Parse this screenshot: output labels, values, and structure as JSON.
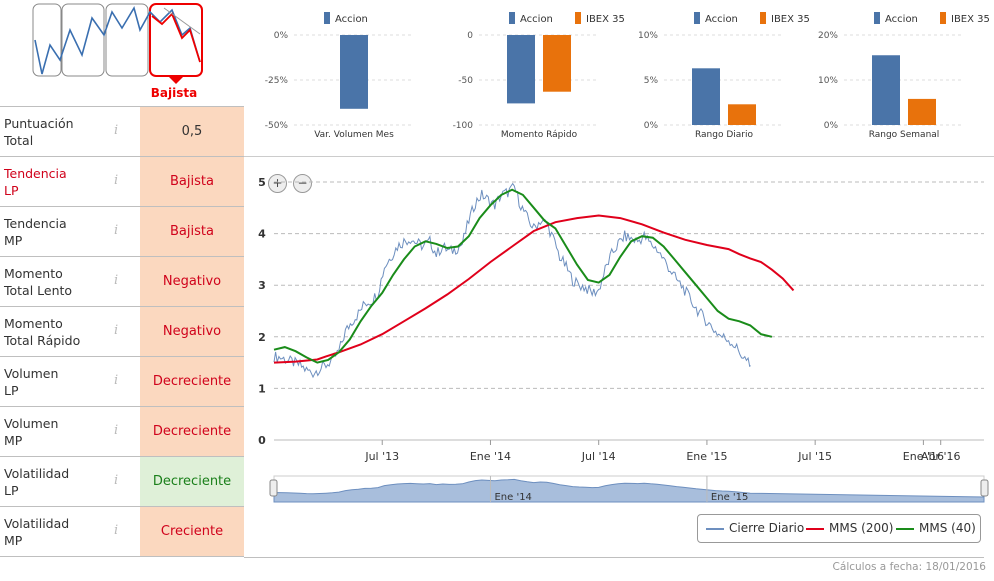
{
  "trend_selector": {
    "selected_label": "Bajista",
    "accent": "#e00000"
  },
  "indicators": [
    {
      "label_1": "Puntuación",
      "label_2": "Total",
      "value": "0,5",
      "label_color": "normal",
      "style": "neutral"
    },
    {
      "label_1": "Tendencia",
      "label_2": "LP",
      "value": "Bajista",
      "label_color": "red",
      "style": "orange"
    },
    {
      "label_1": "Tendencia",
      "label_2": "MP",
      "value": "Bajista",
      "label_color": "normal",
      "style": "orange"
    },
    {
      "label_1": "Momento",
      "label_2": "Total Lento",
      "value": "Negativo",
      "label_color": "normal",
      "style": "orange"
    },
    {
      "label_1": "Momento",
      "label_2": "Total Rápido",
      "value": "Negativo",
      "label_color": "normal",
      "style": "orange"
    },
    {
      "label_1": "Volumen",
      "label_2": "LP",
      "value": "Decreciente",
      "label_color": "normal",
      "style": "orange"
    },
    {
      "label_1": "Volumen",
      "label_2": "MP",
      "value": "Decreciente",
      "label_color": "normal",
      "style": "orange"
    },
    {
      "label_1": "Volatilidad",
      "label_2": "LP",
      "value": "Decreciente",
      "label_color": "normal",
      "style": "green"
    },
    {
      "label_1": "Volatilidad",
      "label_2": "MP",
      "value": "Creciente",
      "label_color": "normal",
      "style": "orange"
    }
  ],
  "info_glyph": "i",
  "colors": {
    "accion": "#4a74a8",
    "ibex": "#e8720c",
    "cierre": "#6d8fbf",
    "mms200": "#e0001b",
    "mms40": "#1a8c1a"
  },
  "chart_data": [
    {
      "type": "bar",
      "legend": [
        "Accion"
      ],
      "categories": [
        "Var. Volumen Mes"
      ],
      "series": [
        {
          "name": "Accion",
          "values": [
            -41
          ]
        }
      ],
      "ylim": [
        -50,
        0
      ],
      "yticks": [
        "0%",
        "-25%",
        "-50%"
      ]
    },
    {
      "type": "bar",
      "legend": [
        "Accion",
        "IBEX 35"
      ],
      "categories": [
        "Momento Rápido"
      ],
      "series": [
        {
          "name": "Accion",
          "values": [
            -76
          ]
        },
        {
          "name": "IBEX 35",
          "values": [
            -63
          ]
        }
      ],
      "ylim": [
        -100,
        0
      ],
      "yticks": [
        "0",
        "-50",
        "-100"
      ]
    },
    {
      "type": "bar",
      "legend": [
        "Accion",
        "IBEX 35"
      ],
      "categories": [
        "Rango Diario"
      ],
      "series": [
        {
          "name": "Accion",
          "values": [
            6.3
          ]
        },
        {
          "name": "IBEX 35",
          "values": [
            2.3
          ]
        }
      ],
      "ylim": [
        0,
        10
      ],
      "yticks": [
        "10%",
        "5%",
        "0%"
      ]
    },
    {
      "type": "bar",
      "legend": [
        "Accion",
        "IBEX 35"
      ],
      "categories": [
        "Rango Semanal"
      ],
      "series": [
        {
          "name": "Accion",
          "values": [
            15.5
          ]
        },
        {
          "name": "IBEX 35",
          "values": [
            5.8
          ]
        }
      ],
      "ylim": [
        0,
        20
      ],
      "yticks": [
        "20%",
        "10%",
        "0%"
      ]
    },
    {
      "type": "line",
      "x_ticks": [
        "Jul '13",
        "Ene '14",
        "Jul '14",
        "Ene '15",
        "Jul '15",
        "Ene '16",
        "Abr '16"
      ],
      "x_tick_pos": [
        2013.5,
        2014.0,
        2014.5,
        2015.0,
        2015.5,
        2016.0,
        2016.08
      ],
      "xlim": [
        2013.0,
        2016.28
      ],
      "y_ticks": [
        "0",
        "1",
        "2",
        "3",
        "4",
        "5"
      ],
      "ylim": [
        0,
        5
      ],
      "navigator_ticks": [
        "Ene '14",
        "Ene '15"
      ],
      "series": [
        {
          "name": "Cierre Diario",
          "points": [
            [
              2013.0,
              1.62
            ],
            [
              2013.03,
              1.6
            ],
            [
              2013.06,
              1.55
            ],
            [
              2013.09,
              1.5
            ],
            [
              2013.12,
              1.45
            ],
            [
              2013.15,
              1.35
            ],
            [
              2013.18,
              1.3
            ],
            [
              2013.21,
              1.38
            ],
            [
              2013.24,
              1.45
            ],
            [
              2013.27,
              1.55
            ],
            [
              2013.3,
              1.72
            ],
            [
              2013.33,
              2.1
            ],
            [
              2013.36,
              2.3
            ],
            [
              2013.39,
              2.45
            ],
            [
              2013.42,
              2.65
            ],
            [
              2013.45,
              2.7
            ],
            [
              2013.48,
              2.85
            ],
            [
              2013.51,
              3.35
            ],
            [
              2013.54,
              3.55
            ],
            [
              2013.57,
              3.75
            ],
            [
              2013.6,
              3.85
            ],
            [
              2013.63,
              3.9
            ],
            [
              2013.66,
              3.82
            ],
            [
              2013.69,
              3.75
            ],
            [
              2013.72,
              3.85
            ],
            [
              2013.75,
              3.6
            ],
            [
              2013.78,
              3.75
            ],
            [
              2013.81,
              3.65
            ],
            [
              2013.84,
              3.7
            ],
            [
              2013.87,
              3.8
            ],
            [
              2013.9,
              4.25
            ],
            [
              2013.93,
              4.6
            ],
            [
              2013.96,
              4.75
            ],
            [
              2013.99,
              4.65
            ],
            [
              2014.02,
              4.55
            ],
            [
              2014.05,
              4.75
            ],
            [
              2014.08,
              4.8
            ],
            [
              2014.11,
              4.9
            ],
            [
              2014.14,
              4.55
            ],
            [
              2014.17,
              4.3
            ],
            [
              2014.2,
              4.1
            ],
            [
              2014.23,
              4.25
            ],
            [
              2014.26,
              4.2
            ],
            [
              2014.29,
              3.9
            ],
            [
              2014.32,
              3.55
            ],
            [
              2014.35,
              3.35
            ],
            [
              2014.38,
              3.1
            ],
            [
              2014.41,
              3.0
            ],
            [
              2014.44,
              2.95
            ],
            [
              2014.47,
              2.85
            ],
            [
              2014.5,
              2.9
            ],
            [
              2014.53,
              3.3
            ],
            [
              2014.56,
              3.6
            ],
            [
              2014.59,
              3.8
            ],
            [
              2014.62,
              3.95
            ],
            [
              2014.65,
              3.9
            ],
            [
              2014.68,
              3.85
            ],
            [
              2014.71,
              3.95
            ],
            [
              2014.74,
              3.8
            ],
            [
              2014.77,
              3.7
            ],
            [
              2014.8,
              3.5
            ],
            [
              2014.83,
              3.3
            ],
            [
              2014.86,
              3.1
            ],
            [
              2014.89,
              2.95
            ],
            [
              2014.92,
              2.75
            ],
            [
              2014.95,
              2.55
            ],
            [
              2014.98,
              2.4
            ],
            [
              2015.01,
              2.25
            ],
            [
              2015.04,
              2.1
            ],
            [
              2015.07,
              2.0
            ],
            [
              2015.1,
              1.95
            ],
            [
              2015.13,
              1.82
            ],
            [
              2015.16,
              1.65
            ],
            [
              2015.19,
              1.5
            ],
            [
              2015.2,
              1.45
            ]
          ]
        },
        {
          "name": "MMS (200)",
          "points": [
            [
              2013.0,
              1.5
            ],
            [
              2013.1,
              1.52
            ],
            [
              2013.2,
              1.56
            ],
            [
              2013.24,
              1.62
            ],
            [
              2013.3,
              1.7
            ],
            [
              2013.4,
              1.85
            ],
            [
              2013.5,
              2.05
            ],
            [
              2013.6,
              2.3
            ],
            [
              2013.7,
              2.55
            ],
            [
              2013.8,
              2.82
            ],
            [
              2013.9,
              3.12
            ],
            [
              2014.0,
              3.45
            ],
            [
              2014.1,
              3.75
            ],
            [
              2014.2,
              4.05
            ],
            [
              2014.3,
              4.22
            ],
            [
              2014.4,
              4.3
            ],
            [
              2014.5,
              4.35
            ],
            [
              2014.6,
              4.3
            ],
            [
              2014.7,
              4.18
            ],
            [
              2014.8,
              4.02
            ],
            [
              2014.9,
              3.88
            ],
            [
              2015.0,
              3.78
            ],
            [
              2015.1,
              3.7
            ],
            [
              2015.15,
              3.6
            ],
            [
              2015.2,
              3.52
            ],
            [
              2015.25,
              3.45
            ],
            [
              2015.3,
              3.3
            ],
            [
              2015.35,
              3.13
            ],
            [
              2015.4,
              2.9
            ]
          ]
        },
        {
          "name": "MMS (40)",
          "points": [
            [
              2013.0,
              1.75
            ],
            [
              2013.05,
              1.8
            ],
            [
              2013.1,
              1.72
            ],
            [
              2013.15,
              1.6
            ],
            [
              2013.2,
              1.5
            ],
            [
              2013.25,
              1.55
            ],
            [
              2013.3,
              1.7
            ],
            [
              2013.35,
              1.95
            ],
            [
              2013.4,
              2.3
            ],
            [
              2013.45,
              2.6
            ],
            [
              2013.5,
              2.85
            ],
            [
              2013.55,
              3.2
            ],
            [
              2013.6,
              3.5
            ],
            [
              2013.65,
              3.75
            ],
            [
              2013.7,
              3.85
            ],
            [
              2013.75,
              3.8
            ],
            [
              2013.8,
              3.72
            ],
            [
              2013.85,
              3.75
            ],
            [
              2013.9,
              3.95
            ],
            [
              2013.95,
              4.3
            ],
            [
              2014.0,
              4.55
            ],
            [
              2014.05,
              4.75
            ],
            [
              2014.1,
              4.85
            ],
            [
              2014.15,
              4.75
            ],
            [
              2014.2,
              4.5
            ],
            [
              2014.25,
              4.25
            ],
            [
              2014.3,
              4.1
            ],
            [
              2014.35,
              3.75
            ],
            [
              2014.4,
              3.4
            ],
            [
              2014.45,
              3.1
            ],
            [
              2014.5,
              3.05
            ],
            [
              2014.55,
              3.2
            ],
            [
              2014.6,
              3.55
            ],
            [
              2014.65,
              3.85
            ],
            [
              2014.7,
              3.95
            ],
            [
              2014.75,
              3.92
            ],
            [
              2014.8,
              3.75
            ],
            [
              2014.85,
              3.5
            ],
            [
              2014.9,
              3.25
            ],
            [
              2014.95,
              3.0
            ],
            [
              2015.0,
              2.75
            ],
            [
              2015.05,
              2.5
            ],
            [
              2015.1,
              2.35
            ],
            [
              2015.15,
              2.3
            ],
            [
              2015.2,
              2.22
            ],
            [
              2015.25,
              2.05
            ],
            [
              2015.3,
              2.0
            ]
          ]
        }
      ],
      "legend_position": "bottom-right"
    }
  ],
  "legend": {
    "cierre": "Cierre Diario",
    "mms200": "MMS (200)",
    "mms40": "MMS (40)"
  },
  "zoom": {
    "in": "+",
    "out": "−"
  },
  "footer": "Cálculos a fecha: 18/01/2016"
}
